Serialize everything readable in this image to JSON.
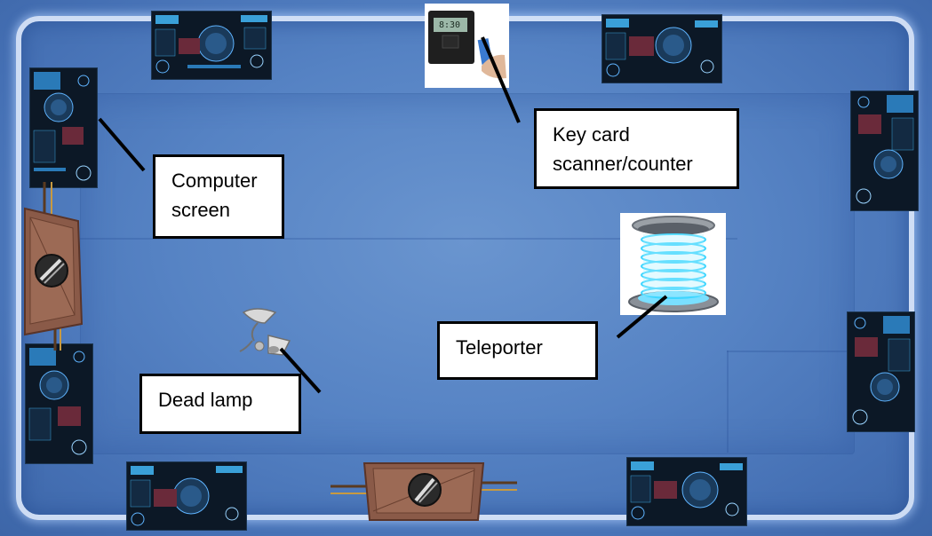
{
  "scene": {
    "labels": {
      "computer_screen": "Computer screen",
      "key_card": "Key card scanner/counter",
      "teleporter": "Teleporter",
      "dead_lamp": "Dead lamp"
    },
    "scanner_display": "8:30"
  },
  "colors": {
    "floor": "#5683c4",
    "rim": "#e6f0ff",
    "screen_bg": "#0c1826",
    "door": "#8a5a48",
    "teleporter_glow": "#3fd6ff"
  },
  "icons": [
    "computer-screen-icon",
    "door-icon",
    "key-card-scanner-icon",
    "teleporter-icon",
    "lamp-icon"
  ]
}
